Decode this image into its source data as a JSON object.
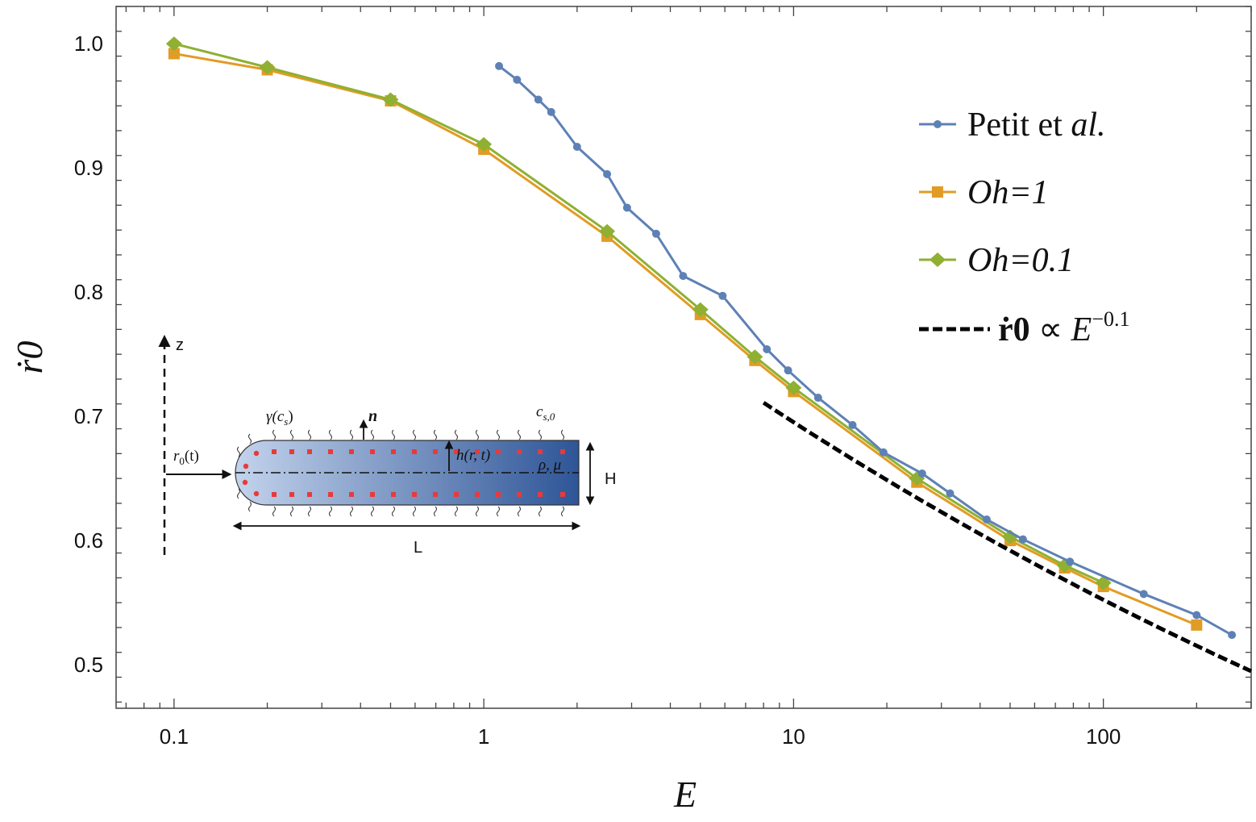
{
  "chart_data": {
    "type": "line",
    "xlabel": "E",
    "ylabel": "ṙ0",
    "xscale": "log",
    "xlim": [
      0.065,
      300
    ],
    "ylim": [
      0.465,
      1.03
    ],
    "x_ticks": [
      {
        "value": 0.1,
        "label": "0.1"
      },
      {
        "value": 1,
        "label": "1"
      },
      {
        "value": 10,
        "label": "10"
      },
      {
        "value": 100,
        "label": "100"
      }
    ],
    "y_ticks": [
      {
        "value": 0.5,
        "label": "0.5"
      },
      {
        "value": 0.6,
        "label": "0.6"
      },
      {
        "value": 0.7,
        "label": "0.7"
      },
      {
        "value": 0.8,
        "label": "0.8"
      },
      {
        "value": 0.9,
        "label": "0.9"
      },
      {
        "value": 1.0,
        "label": "1.0"
      }
    ],
    "legend_position": "top-right",
    "series": [
      {
        "name": "Petit et al.",
        "name_plain": "Petit et ",
        "name_italic": "al.",
        "color": "#5e81b5",
        "marker": "circle",
        "x": [
          1.12,
          1.28,
          1.5,
          1.65,
          2.0,
          2.5,
          2.9,
          3.6,
          4.4,
          5.9,
          8.2,
          9.6,
          12,
          15.5,
          19.5,
          26,
          32,
          42,
          55,
          78,
          135,
          200,
          260
        ],
        "y": [
          0.982,
          0.971,
          0.955,
          0.945,
          0.917,
          0.895,
          0.868,
          0.847,
          0.813,
          0.797,
          0.754,
          0.737,
          0.715,
          0.693,
          0.671,
          0.654,
          0.638,
          0.617,
          0.601,
          0.583,
          0.557,
          0.54,
          0.524
        ]
      },
      {
        "name": "Oh=1",
        "color": "#e19c24",
        "marker": "square",
        "x": [
          0.1,
          0.2,
          0.5,
          1,
          2.5,
          5,
          7.5,
          10,
          25,
          50,
          75,
          100,
          200
        ],
        "y": [
          0.992,
          0.979,
          0.954,
          0.915,
          0.845,
          0.782,
          0.745,
          0.72,
          0.647,
          0.6,
          0.578,
          0.563,
          0.532
        ]
      },
      {
        "name": "Oh=0.1",
        "color": "#8fb032",
        "marker": "diamond",
        "x": [
          0.1,
          0.2,
          0.5,
          1,
          2.5,
          5,
          7.5,
          10,
          25,
          50,
          75,
          100
        ],
        "y": [
          1.0,
          0.981,
          0.955,
          0.919,
          0.849,
          0.786,
          0.748,
          0.723,
          0.65,
          0.603,
          0.58,
          0.566
        ]
      }
    ],
    "fit_line": {
      "label_base": "ṙ0",
      "label_mid": " ∝ ",
      "label_E": "E",
      "label_exp": "−0.1",
      "exponent": -0.1,
      "x": [
        8,
        300
      ],
      "y": [
        0.711,
        0.497
      ],
      "color": "#000000",
      "style": "dashed"
    },
    "inset": {
      "z_label": "z",
      "r0_label": "r0(t)",
      "gamma_label": "γ(cs)",
      "n_label": "n",
      "cs0_label": "cs,0",
      "h_label": "h(r, t)",
      "rho_mu_label": "ρ, μ",
      "H_label": "H",
      "L_label": "L",
      "fill_light": "#c3d3ec",
      "fill_dark": "#2e5597",
      "dot_color": "#e83a3a"
    }
  }
}
